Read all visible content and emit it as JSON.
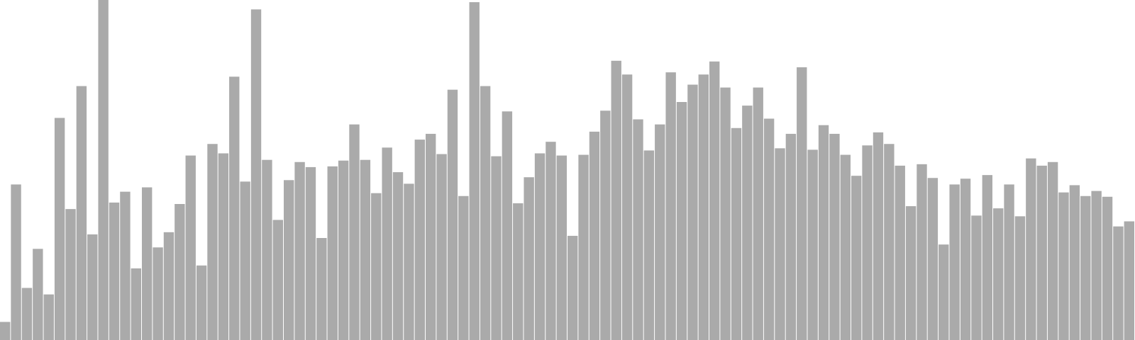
{
  "chart_data": {
    "type": "bar",
    "color": "#aaaaaa",
    "ylim": [
      0,
      470
    ],
    "values": [
      25,
      215,
      72,
      126,
      63,
      307,
      181,
      351,
      146,
      470,
      190,
      205,
      99,
      211,
      128,
      149,
      188,
      255,
      103,
      271,
      258,
      364,
      219,
      457,
      249,
      166,
      221,
      246,
      239,
      141,
      240,
      248,
      298,
      249,
      203,
      266,
      232,
      216,
      277,
      285,
      257,
      346,
      199,
      467,
      351,
      254,
      316,
      189,
      225,
      258,
      274,
      255,
      144,
      256,
      288,
      317,
      386,
      367,
      305,
      262,
      298,
      370,
      329,
      353,
      367,
      385,
      349,
      293,
      324,
      349,
      306,
      265,
      285,
      377,
      263,
      297,
      285,
      256,
      227,
      269,
      287,
      271,
      241,
      185,
      243,
      224,
      132,
      215,
      223,
      172,
      228,
      182,
      215,
      171,
      251,
      241,
      246,
      204,
      214,
      199,
      206,
      198,
      157,
      164
    ]
  }
}
